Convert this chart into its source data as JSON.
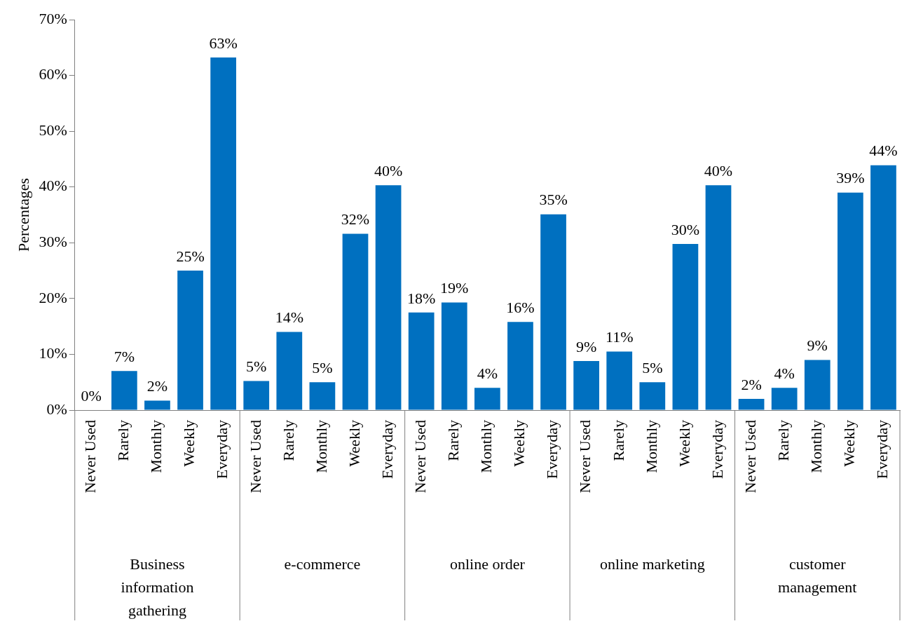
{
  "chart_data": {
    "type": "bar",
    "ylabel": "Percentages",
    "categories": [
      "Never Used",
      "Rarely",
      "Monthly",
      "Weekly",
      "Everyday",
      "Never Used",
      "Rarely",
      "Monthly",
      "Weekly",
      "Everyday",
      "Never Used",
      "Rarely",
      "Monthly",
      "Weekly",
      "Everyday",
      "Never Used",
      "Rarely",
      "Monthly",
      "Weekly",
      "Everyday",
      "Never Used",
      "Rarely",
      "Monthly",
      "Weekly",
      "Everyday"
    ],
    "values": [
      0,
      7,
      1.7,
      25,
      63.2,
      5.2,
      14,
      5,
      31.6,
      40.3,
      17.5,
      19.3,
      4,
      15.8,
      35.1,
      8.8,
      10.5,
      5,
      29.8,
      40.3,
      2,
      4,
      9,
      39,
      43.9
    ],
    "value_labels": [
      "0%",
      "7%",
      "2%",
      "25%",
      "63%",
      "5%",
      "14%",
      "5%",
      "32%",
      "40%",
      "18%",
      "19%",
      "4%",
      "16%",
      "35%",
      "9%",
      "11%",
      "5%",
      "30%",
      "40%",
      "2%",
      "4%",
      "9%",
      "39%",
      "44%"
    ],
    "color": "#0070c0",
    "ylim": [
      0,
      70
    ],
    "yticks": [
      {
        "value": 0,
        "label": "0%"
      },
      {
        "value": 10,
        "label": "10%"
      },
      {
        "value": 20,
        "label": "20%"
      },
      {
        "value": 30,
        "label": "30%"
      },
      {
        "value": 40,
        "label": "40%"
      },
      {
        "value": 50,
        "label": "50%"
      },
      {
        "value": 60,
        "label": "60%"
      },
      {
        "value": 70,
        "label": "70%"
      }
    ],
    "annotations": [
      "Business information gathering",
      "e-commerce",
      "online order",
      "online marketing",
      "customer management"
    ],
    "legend": false
  }
}
